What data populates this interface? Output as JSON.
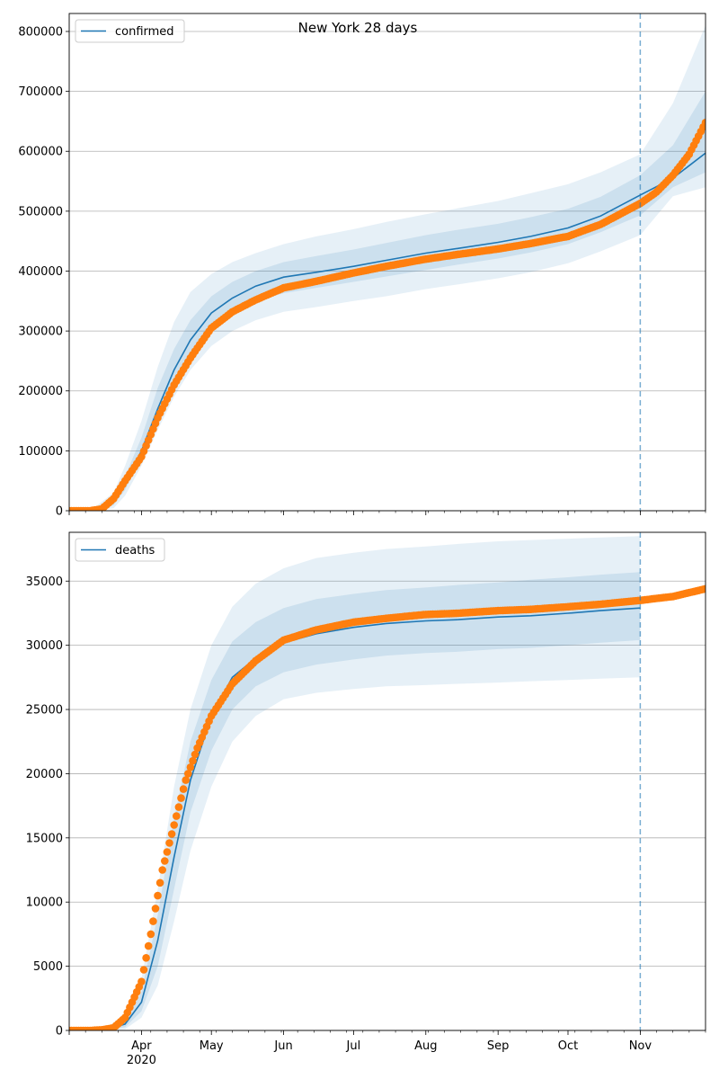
{
  "figure": {
    "title": "New York 28 days"
  },
  "chart_data": [
    {
      "type": "line",
      "title": "New York 28 days",
      "legend": "confirmed",
      "legend_position": "top-left",
      "grid": "horizontal",
      "xlim": [
        "2020-03-01",
        "2020-11-29"
      ],
      "ylim": [
        0,
        830000
      ],
      "yticks": [
        0,
        100000,
        200000,
        300000,
        400000,
        500000,
        600000,
        700000,
        800000
      ],
      "forecast_start": "2020-11-01",
      "colors": {
        "model": "#1f77b4",
        "observed": "#ff7f0e",
        "band": "#1f77b4"
      },
      "model": {
        "name": "confirmed",
        "x": [
          "2020-03-01",
          "2020-03-10",
          "2020-03-20",
          "2020-03-25",
          "2020-04-01",
          "2020-04-08",
          "2020-04-15",
          "2020-04-22",
          "2020-05-01",
          "2020-05-10",
          "2020-05-20",
          "2020-06-01",
          "2020-06-15",
          "2020-07-01",
          "2020-07-15",
          "2020-08-01",
          "2020-08-15",
          "2020-09-01",
          "2020-09-15",
          "2020-10-01",
          "2020-10-15",
          "2020-11-01",
          "2020-11-15",
          "2020-11-29"
        ],
        "y": [
          0,
          0,
          15000,
          45000,
          100000,
          170000,
          235000,
          285000,
          330000,
          355000,
          375000,
          390000,
          398000,
          408000,
          418000,
          430000,
          438000,
          448000,
          458000,
          472000,
          492000,
          527000,
          555000,
          597000
        ]
      },
      "band_outer": {
        "lower": [
          0,
          0,
          4000,
          25000,
          75000,
          135000,
          190000,
          235000,
          275000,
          300000,
          318000,
          332000,
          340000,
          350000,
          358000,
          370000,
          378000,
          388000,
          398000,
          413000,
          433000,
          460000,
          525000,
          540000
        ],
        "upper": [
          0,
          0,
          30000,
          75000,
          150000,
          240000,
          315000,
          365000,
          395000,
          415000,
          430000,
          445000,
          458000,
          470000,
          482000,
          495000,
          505000,
          517000,
          530000,
          545000,
          565000,
          595000,
          680000,
          810000
        ]
      },
      "band_inner": {
        "lower": [
          0,
          0,
          9000,
          35000,
          88000,
          155000,
          215000,
          262000,
          305000,
          330000,
          350000,
          363000,
          372000,
          382000,
          391000,
          402000,
          411000,
          421000,
          431000,
          445000,
          465000,
          493000,
          540000,
          565000
        ],
        "upper": [
          0,
          0,
          22000,
          58000,
          122000,
          205000,
          270000,
          318000,
          358000,
          382000,
          400000,
          415000,
          425000,
          436000,
          447000,
          460000,
          469000,
          479000,
          490000,
          504000,
          524000,
          560000,
          610000,
          700000
        ]
      },
      "observed": {
        "x": [
          "2020-03-01",
          "2020-03-10",
          "2020-03-15",
          "2020-03-20",
          "2020-03-25",
          "2020-04-01",
          "2020-04-08",
          "2020-04-15",
          "2020-04-22",
          "2020-05-01",
          "2020-05-10",
          "2020-05-20",
          "2020-06-01",
          "2020-06-15",
          "2020-07-01",
          "2020-07-15",
          "2020-08-01",
          "2020-08-15",
          "2020-09-01",
          "2020-09-15",
          "2020-10-01",
          "2020-10-15",
          "2020-11-01",
          "2020-11-08",
          "2020-11-15",
          "2020-11-22",
          "2020-11-29"
        ],
        "y": [
          0,
          0,
          3000,
          20000,
          50000,
          90000,
          155000,
          210000,
          255000,
          305000,
          332000,
          352000,
          372000,
          383000,
          397000,
          408000,
          420000,
          428000,
          437000,
          446000,
          458000,
          478000,
          513000,
          532000,
          560000,
          595000,
          648000
        ]
      }
    },
    {
      "type": "line",
      "legend": "deaths",
      "legend_position": "top-left",
      "grid": "horizontal",
      "xlim": [
        "2020-03-01",
        "2020-11-29"
      ],
      "ylim": [
        0,
        38800
      ],
      "yticks": [
        0,
        5000,
        10000,
        15000,
        20000,
        25000,
        30000,
        35000
      ],
      "forecast_start": "2020-11-01",
      "x_ticks": [
        "Apr\n2020",
        "May",
        "Jun",
        "Jul",
        "Aug",
        "Sep",
        "Oct",
        "Nov"
      ],
      "colors": {
        "model": "#1f77b4",
        "observed": "#ff7f0e",
        "band": "#1f77b4"
      },
      "model": {
        "name": "deaths",
        "x": [
          "2020-03-01",
          "2020-03-15",
          "2020-03-25",
          "2020-04-01",
          "2020-04-08",
          "2020-04-15",
          "2020-04-22",
          "2020-05-01",
          "2020-05-10",
          "2020-05-20",
          "2020-06-01",
          "2020-06-15",
          "2020-07-01",
          "2020-07-15",
          "2020-08-01",
          "2020-08-15",
          "2020-09-01",
          "2020-09-15",
          "2020-10-01",
          "2020-10-15",
          "2020-11-01"
        ],
        "y": [
          0,
          0,
          500,
          2200,
          7000,
          13500,
          19500,
          24500,
          27500,
          29000,
          30200,
          30900,
          31400,
          31700,
          31900,
          32000,
          32200,
          32300,
          32500,
          32700,
          32900
        ]
      },
      "band_outer": {
        "lower": [
          0,
          0,
          100,
          1000,
          3500,
          8500,
          14000,
          19000,
          22500,
          24500,
          25800,
          26300,
          26600,
          26800,
          26900,
          27000,
          27100,
          27200,
          27300,
          27400,
          27500
        ],
        "upper": [
          0,
          0,
          1200,
          4000,
          11000,
          19000,
          25000,
          30000,
          33000,
          34800,
          36000,
          36800,
          37200,
          37500,
          37700,
          37900,
          38100,
          38200,
          38300,
          38400,
          38500
        ]
      },
      "band_inner": {
        "lower": [
          0,
          0,
          250,
          1500,
          5000,
          11000,
          17000,
          21800,
          25000,
          26800,
          27900,
          28500,
          28900,
          29200,
          29400,
          29500,
          29700,
          29800,
          30000,
          30200,
          30400
        ],
        "upper": [
          0,
          0,
          800,
          3000,
          9000,
          16500,
          22500,
          27300,
          30300,
          31800,
          32900,
          33600,
          34000,
          34300,
          34500,
          34700,
          34900,
          35100,
          35300,
          35500,
          35700
        ]
      },
      "observed": {
        "x": [
          "2020-03-01",
          "2020-03-10",
          "2020-03-15",
          "2020-03-20",
          "2020-03-25",
          "2020-04-01",
          "2020-04-05",
          "2020-04-10",
          "2020-04-15",
          "2020-04-20",
          "2020-04-25",
          "2020-05-01",
          "2020-05-10",
          "2020-05-20",
          "2020-06-01",
          "2020-06-15",
          "2020-07-01",
          "2020-07-15",
          "2020-08-01",
          "2020-08-15",
          "2020-09-01",
          "2020-09-15",
          "2020-10-01",
          "2020-10-15",
          "2020-11-01",
          "2020-11-15",
          "2020-11-29"
        ],
        "y": [
          0,
          0,
          50,
          200,
          1000,
          3800,
          7500,
          12500,
          16000,
          19500,
          22000,
          24500,
          27000,
          28800,
          30400,
          31200,
          31800,
          32100,
          32400,
          32500,
          32700,
          32800,
          33000,
          33200,
          33500,
          33800,
          34400
        ]
      }
    }
  ]
}
